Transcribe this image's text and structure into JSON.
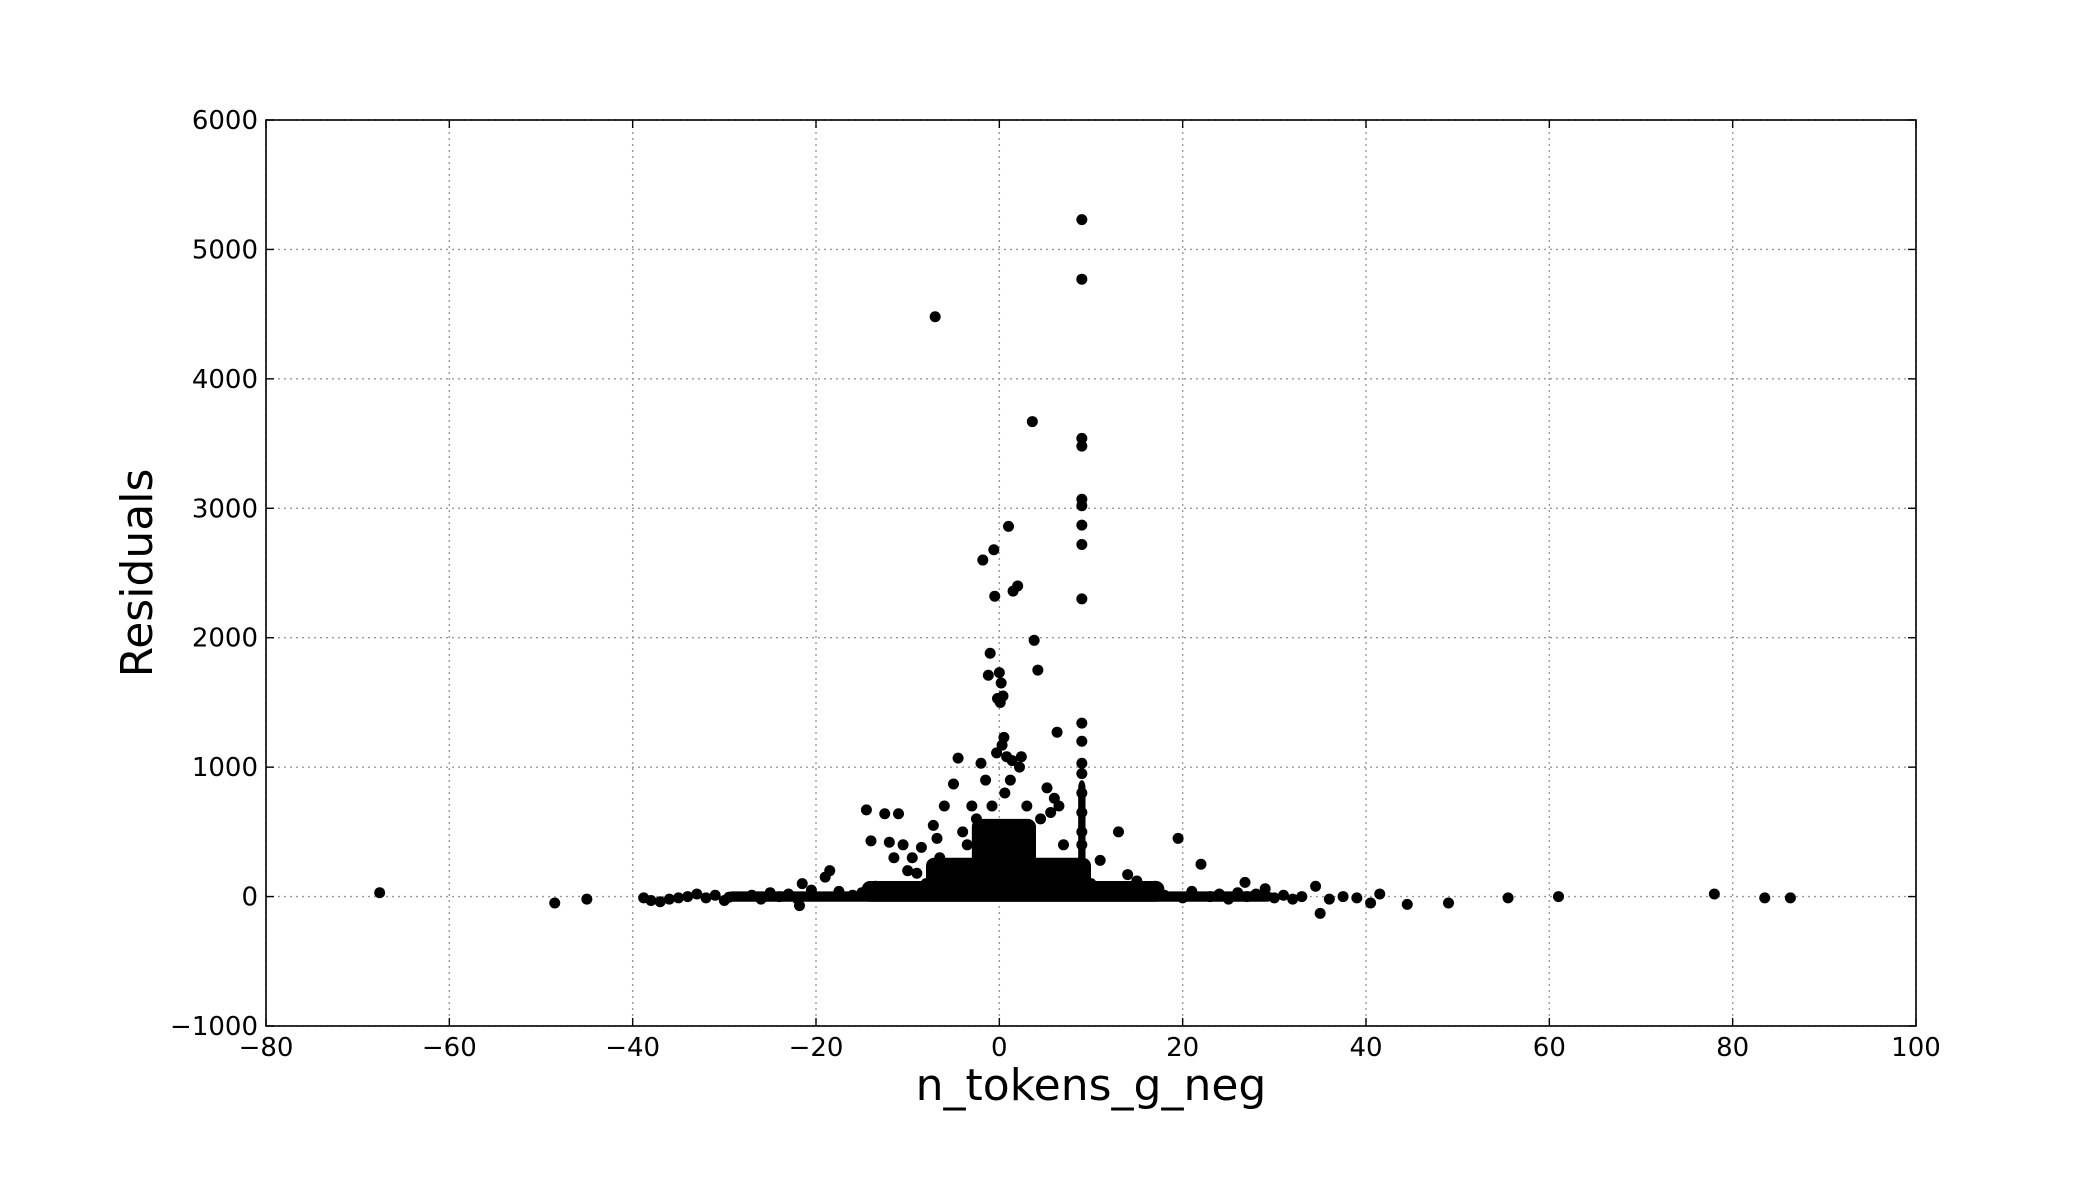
{
  "chart_data": {
    "type": "scatter",
    "title": "",
    "xlabel": "n_tokens_g_neg",
    "ylabel": "Residuals",
    "xlim": [
      -80,
      100
    ],
    "ylim": [
      -1000,
      6000
    ],
    "xticks": [
      -80,
      -60,
      -40,
      -20,
      0,
      20,
      40,
      60,
      80,
      100
    ],
    "yticks": [
      -1000,
      0,
      1000,
      2000,
      3000,
      4000,
      5000,
      6000
    ],
    "xtick_labels": [
      "−80",
      "−60",
      "−40",
      "−20",
      "0",
      "20",
      "40",
      "60",
      "80",
      "100"
    ],
    "ytick_labels": [
      "−1000",
      "0",
      "1000",
      "2000",
      "3000",
      "4000",
      "5000",
      "6000"
    ],
    "grid": true,
    "legend": "none",
    "colors": {
      "marker": "#000000",
      "grid": "#999999",
      "background": "#ffffff"
    },
    "series": [
      {
        "points": [
          [
            -67.6,
            30
          ],
          [
            -48.5,
            -50
          ],
          [
            -45.0,
            -20
          ],
          [
            -38.8,
            -10
          ],
          [
            -38.0,
            -30
          ],
          [
            -37.0,
            -40
          ],
          [
            -36.0,
            -20
          ],
          [
            -35.0,
            -10
          ],
          [
            -34.0,
            0
          ],
          [
            -33.0,
            20
          ],
          [
            -32.0,
            -10
          ],
          [
            -31.0,
            10
          ],
          [
            -30.0,
            -30
          ],
          [
            -29.5,
            -5
          ],
          [
            -27.0,
            10
          ],
          [
            -26.0,
            -20
          ],
          [
            -25.0,
            30
          ],
          [
            -24.0,
            0
          ],
          [
            -23.0,
            20
          ],
          [
            -22.0,
            -20
          ],
          [
            -21.5,
            100
          ],
          [
            -21.8,
            -70
          ],
          [
            -20.5,
            50
          ],
          [
            -19.0,
            150
          ],
          [
            -18.5,
            200
          ],
          [
            -17.5,
            40
          ],
          [
            -16.0,
            10
          ],
          [
            -15.0,
            30
          ],
          [
            -14.5,
            670
          ],
          [
            -14.0,
            430
          ],
          [
            -13.5,
            80
          ],
          [
            -12.5,
            640
          ],
          [
            -12.0,
            420
          ],
          [
            -11.5,
            300
          ],
          [
            -11.0,
            640
          ],
          [
            -10.5,
            400
          ],
          [
            -10.0,
            200
          ],
          [
            -9.5,
            300
          ],
          [
            -9.0,
            180
          ],
          [
            -8.5,
            380
          ],
          [
            -8.0,
            100
          ],
          [
            -7.0,
            4480
          ],
          [
            -7.2,
            550
          ],
          [
            -6.8,
            450
          ],
          [
            -6.5,
            300
          ],
          [
            -6.0,
            700
          ],
          [
            -5.5,
            250
          ],
          [
            -5.0,
            870
          ],
          [
            -4.5,
            1070
          ],
          [
            -4.0,
            500
          ],
          [
            -3.5,
            400
          ],
          [
            -3.0,
            700
          ],
          [
            -2.5,
            600
          ],
          [
            -2.0,
            1030
          ],
          [
            -1.8,
            2600
          ],
          [
            -1.5,
            900
          ],
          [
            -1.2,
            1710
          ],
          [
            -1.0,
            1880
          ],
          [
            -0.8,
            700
          ],
          [
            -0.6,
            2680
          ],
          [
            -0.5,
            2320
          ],
          [
            -0.3,
            1110
          ],
          [
            -0.2,
            1530
          ],
          [
            0.0,
            1730
          ],
          [
            0.1,
            1500
          ],
          [
            0.2,
            1650
          ],
          [
            0.3,
            1170
          ],
          [
            0.4,
            1550
          ],
          [
            0.5,
            1230
          ],
          [
            0.6,
            800
          ],
          [
            0.8,
            1080
          ],
          [
            1.0,
            2860
          ],
          [
            1.2,
            900
          ],
          [
            1.4,
            1050
          ],
          [
            1.5,
            2360
          ],
          [
            2.0,
            2400
          ],
          [
            2.2,
            1000
          ],
          [
            2.4,
            1080
          ],
          [
            3.0,
            700
          ],
          [
            3.6,
            3670
          ],
          [
            3.8,
            1980
          ],
          [
            4.2,
            1750
          ],
          [
            4.5,
            600
          ],
          [
            5.2,
            840
          ],
          [
            5.6,
            650
          ],
          [
            6.0,
            760
          ],
          [
            6.3,
            1270
          ],
          [
            6.5,
            700
          ],
          [
            7.0,
            400
          ],
          [
            9.0,
            5230
          ],
          [
            9.0,
            4770
          ],
          [
            9.0,
            3540
          ],
          [
            9.0,
            3480
          ],
          [
            9.0,
            3070
          ],
          [
            9.0,
            3020
          ],
          [
            9.0,
            2870
          ],
          [
            9.0,
            2720
          ],
          [
            9.0,
            2300
          ],
          [
            9.0,
            1340
          ],
          [
            9.0,
            1200
          ],
          [
            9.0,
            1030
          ],
          [
            9.0,
            950
          ],
          [
            9.0,
            800
          ],
          [
            9.0,
            650
          ],
          [
            9.0,
            500
          ],
          [
            9.0,
            400
          ],
          [
            11.0,
            280
          ],
          [
            13.0,
            500
          ],
          [
            14.0,
            170
          ],
          [
            15.0,
            120
          ],
          [
            17.0,
            80
          ],
          [
            19.5,
            450
          ],
          [
            22.0,
            250
          ],
          [
            26.8,
            110
          ],
          [
            29.0,
            60
          ],
          [
            34.5,
            80
          ],
          [
            35.0,
            -130
          ],
          [
            37.5,
            0
          ],
          [
            40.5,
            -50
          ],
          [
            41.5,
            20
          ],
          [
            44.5,
            -60
          ],
          [
            49.0,
            -50
          ],
          [
            55.5,
            -10
          ],
          [
            61.0,
            0
          ],
          [
            78.0,
            20
          ],
          [
            83.5,
            -10
          ],
          [
            86.3,
            -10
          ],
          [
            10.0,
            100
          ],
          [
            12.0,
            50
          ],
          [
            16.0,
            30
          ],
          [
            18.0,
            10
          ],
          [
            20.0,
            -10
          ],
          [
            21.0,
            40
          ],
          [
            23.0,
            0
          ],
          [
            24.0,
            20
          ],
          [
            25.0,
            -20
          ],
          [
            26.0,
            30
          ],
          [
            27.0,
            0
          ],
          [
            28.0,
            20
          ],
          [
            30.0,
            -10
          ],
          [
            31.0,
            10
          ],
          [
            32.0,
            -20
          ],
          [
            33.0,
            0
          ],
          [
            36.0,
            -20
          ],
          [
            39.0,
            -10
          ]
        ]
      }
    ]
  }
}
